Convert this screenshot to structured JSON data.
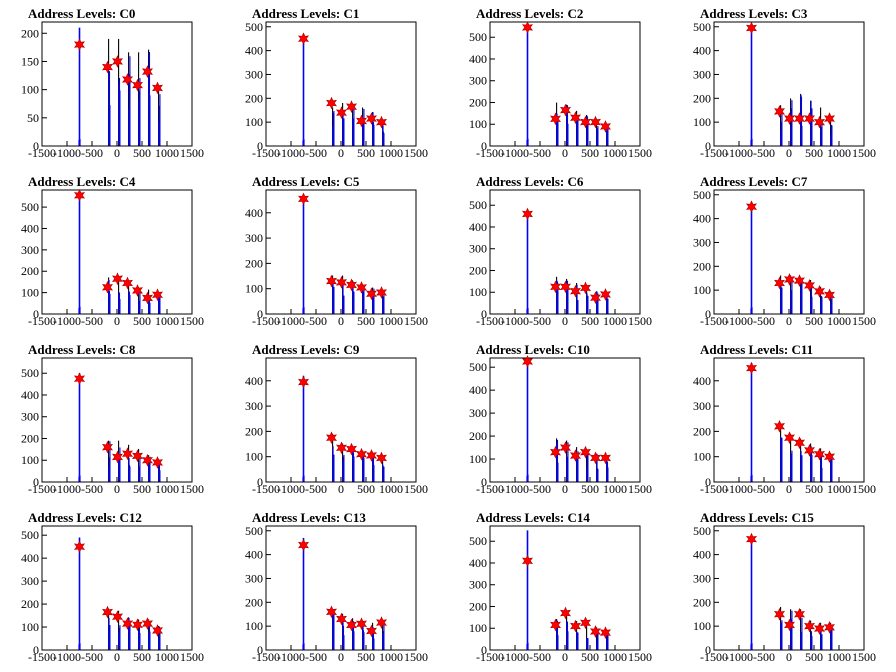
{
  "chart_data": {
    "type": "histogram-grid",
    "x_ticks": [
      -1500,
      -1000,
      -500,
      0,
      500,
      1000,
      1500
    ],
    "xlim": [
      -1500,
      1500
    ],
    "peak_x": [
      -750,
      -150,
      50,
      250,
      450,
      650,
      850
    ],
    "colors": {
      "spike": "#0000ff",
      "marker": "#ff0000",
      "axis": "#000000"
    },
    "panels": [
      {
        "title": "Address Levels: C0",
        "ylim": [
          0,
          220
        ],
        "y_ticks": [
          0,
          50,
          100,
          150,
          200
        ],
        "spike_max": [
          210,
          200,
          200,
          175,
          175,
          180,
          110
        ],
        "markers": [
          180,
          140,
          150,
          118,
          108,
          132,
          103
        ]
      },
      {
        "title": "Address Levels: C1",
        "ylim": [
          0,
          520
        ],
        "y_ticks": [
          0,
          100,
          200,
          300,
          400,
          500
        ],
        "spike_max": [
          470,
          170,
          190,
          180,
          170,
          150,
          110
        ],
        "markers": [
          450,
          180,
          140,
          165,
          105,
          115,
          100
        ]
      },
      {
        "title": "Address Levels: C2",
        "ylim": [
          0,
          570
        ],
        "y_ticks": [
          0,
          100,
          200,
          300,
          400,
          500
        ],
        "spike_max": [
          560,
          210,
          200,
          170,
          150,
          130,
          100
        ],
        "markers": [
          545,
          125,
          165,
          130,
          110,
          110,
          90
        ]
      },
      {
        "title": "Address Levels: C3",
        "ylim": [
          0,
          520
        ],
        "y_ticks": [
          0,
          100,
          200,
          300,
          400,
          500
        ],
        "spike_max": [
          500,
          180,
          210,
          230,
          200,
          170,
          130
        ],
        "markers": [
          495,
          145,
          115,
          115,
          115,
          100,
          115
        ]
      },
      {
        "title": "Address Levels: C4",
        "ylim": [
          0,
          580
        ],
        "y_ticks": [
          0,
          100,
          200,
          300,
          400,
          500
        ],
        "spike_max": [
          570,
          180,
          180,
          160,
          130,
          120,
          100
        ],
        "markers": [
          555,
          125,
          165,
          145,
          110,
          75,
          90
        ]
      },
      {
        "title": "Address Levels: C5",
        "ylim": [
          0,
          490
        ],
        "y_ticks": [
          0,
          100,
          200,
          300,
          400
        ],
        "spike_max": [
          460,
          160,
          160,
          140,
          120,
          110,
          100
        ],
        "markers": [
          455,
          130,
          125,
          115,
          105,
          80,
          85
        ]
      },
      {
        "title": "Address Levels: C6",
        "ylim": [
          0,
          570
        ],
        "y_ticks": [
          0,
          100,
          200,
          300,
          400,
          500
        ],
        "spike_max": [
          470,
          180,
          170,
          150,
          140,
          110,
          100
        ],
        "markers": [
          460,
          125,
          125,
          105,
          120,
          75,
          90
        ]
      },
      {
        "title": "Address Levels: C7",
        "ylim": [
          0,
          520
        ],
        "y_ticks": [
          0,
          100,
          200,
          300,
          400,
          500
        ],
        "spike_max": [
          470,
          170,
          170,
          160,
          150,
          120,
          100
        ],
        "markers": [
          450,
          130,
          145,
          140,
          120,
          95,
          80
        ]
      },
      {
        "title": "Address Levels: C8",
        "ylim": [
          0,
          570
        ],
        "y_ticks": [
          0,
          100,
          200,
          300,
          400,
          500
        ],
        "spike_max": [
          500,
          200,
          200,
          180,
          160,
          130,
          110
        ],
        "markers": [
          475,
          160,
          115,
          130,
          120,
          100,
          90
        ]
      },
      {
        "title": "Address Levels: C9",
        "ylim": [
          0,
          490
        ],
        "y_ticks": [
          0,
          100,
          200,
          300,
          400
        ],
        "spike_max": [
          420,
          200,
          160,
          150,
          130,
          120,
          110
        ],
        "markers": [
          395,
          175,
          135,
          130,
          110,
          105,
          95
        ]
      },
      {
        "title": "Address Levels: C10",
        "ylim": [
          0,
          540
        ],
        "y_ticks": [
          0,
          100,
          200,
          300,
          400,
          500
        ],
        "spike_max": [
          540,
          200,
          190,
          160,
          150,
          130,
          110
        ],
        "markers": [
          525,
          130,
          150,
          115,
          130,
          105,
          105
        ]
      },
      {
        "title": "Address Levels: C11",
        "ylim": [
          0,
          490
        ],
        "y_ticks": [
          0,
          100,
          200,
          300,
          400
        ],
        "spike_max": [
          470,
          230,
          200,
          180,
          160,
          140,
          120
        ],
        "markers": [
          450,
          220,
          175,
          155,
          125,
          110,
          100
        ]
      },
      {
        "title": "Address Levels: C12",
        "ylim": [
          0,
          540
        ],
        "y_ticks": [
          0,
          100,
          200,
          300,
          400,
          500
        ],
        "spike_max": [
          490,
          190,
          180,
          150,
          140,
          140,
          110
        ],
        "markers": [
          450,
          165,
          145,
          115,
          110,
          115,
          85
        ]
      },
      {
        "title": "Address Levels: C13",
        "ylim": [
          0,
          520
        ],
        "y_ticks": [
          0,
          100,
          200,
          300,
          400,
          500
        ],
        "spike_max": [
          470,
          180,
          160,
          140,
          130,
          120,
          120
        ],
        "markers": [
          440,
          160,
          130,
          105,
          110,
          80,
          115
        ]
      },
      {
        "title": "Address Levels: C14",
        "ylim": [
          0,
          570
        ],
        "y_ticks": [
          0,
          100,
          200,
          300,
          400,
          500
        ],
        "spike_max": [
          550,
          150,
          180,
          140,
          130,
          110,
          100
        ],
        "markers": [
          410,
          115,
          170,
          110,
          125,
          85,
          80
        ]
      },
      {
        "title": "Address Levels: C15",
        "ylim": [
          0,
          520
        ],
        "y_ticks": [
          0,
          100,
          200,
          300,
          400,
          500
        ],
        "spike_max": [
          480,
          190,
          180,
          180,
          130,
          120,
          120
        ],
        "markers": [
          465,
          150,
          105,
          150,
          100,
          90,
          95
        ]
      }
    ]
  }
}
